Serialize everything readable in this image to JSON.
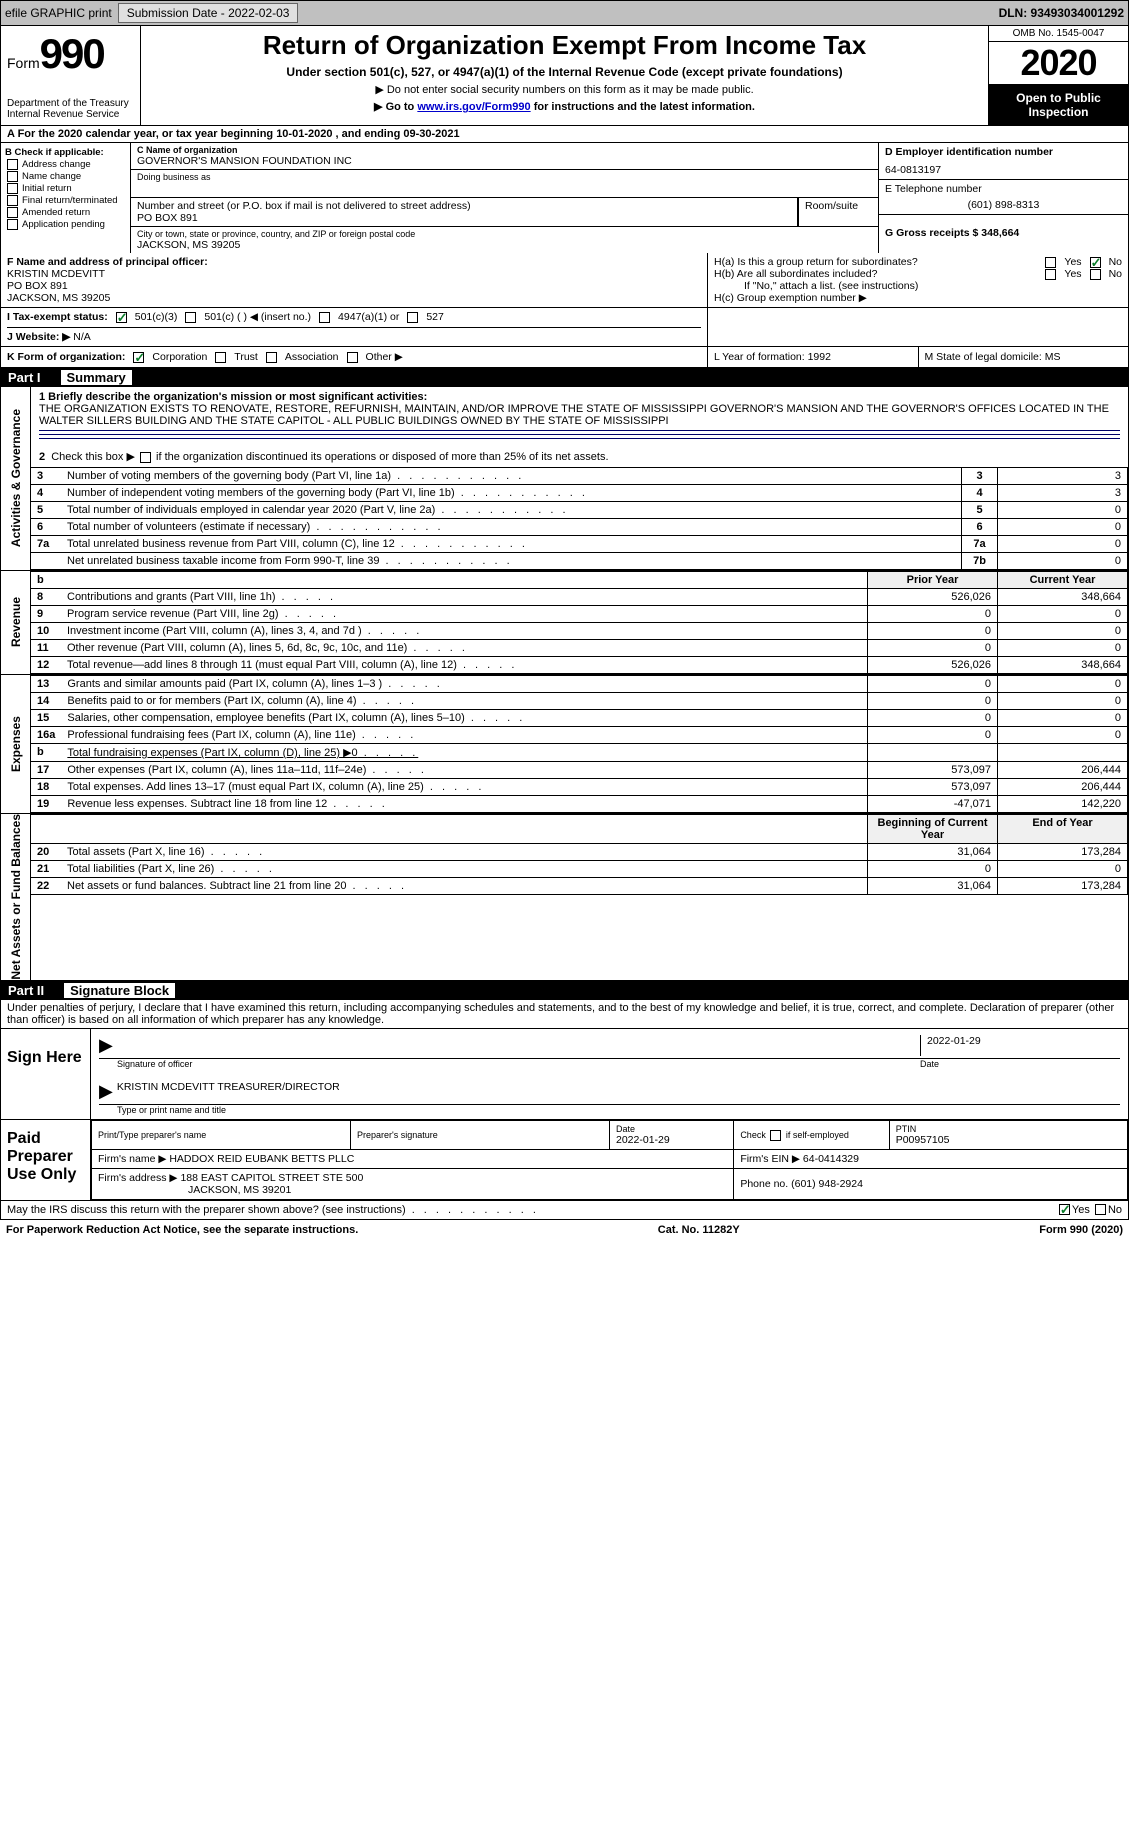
{
  "topbar": {
    "efile": "efile GRAPHIC print",
    "submission_label": "Submission Date - 2022-02-03",
    "dln_label": "DLN: 93493034001292"
  },
  "header": {
    "form_prefix": "Form",
    "form_number": "990",
    "dept": "Department of the Treasury",
    "irs": "Internal Revenue Service",
    "title": "Return of Organization Exempt From Income Tax",
    "subtitle": "Under section 501(c), 527, or 4947(a)(1) of the Internal Revenue Code (except private foundations)",
    "note1": "▶ Do not enter social security numbers on this form as it may be made public.",
    "note2_pre": "▶ Go to ",
    "note2_link": "www.irs.gov/Form990",
    "note2_post": " for instructions and the latest information.",
    "omb": "OMB No. 1545-0047",
    "year": "2020",
    "open": "Open to Public Inspection"
  },
  "period": {
    "label": "A For the 2020 calendar year, or tax year beginning 10-01-2020   , and ending 09-30-2021"
  },
  "section_b": {
    "title": "B Check if applicable:",
    "opts": [
      "Address change",
      "Name change",
      "Initial return",
      "Final return/terminated",
      "Amended return",
      "Application pending"
    ]
  },
  "section_c": {
    "name_label": "C Name of organization",
    "name": "GOVERNOR'S MANSION FOUNDATION INC",
    "dba_label": "Doing business as",
    "addr_label": "Number and street (or P.O. box if mail is not delivered to street address)",
    "room_label": "Room/suite",
    "addr": "PO BOX 891",
    "city_label": "City or town, state or province, country, and ZIP or foreign postal code",
    "city": "JACKSON, MS  39205"
  },
  "section_d": {
    "ein_label": "D Employer identification number",
    "ein": "64-0813197",
    "phone_label": "E Telephone number",
    "phone": "(601) 898-8313",
    "gross_label": "G Gross receipts $ 348,664"
  },
  "section_f": {
    "label": "F  Name and address of principal officer:",
    "name": "KRISTIN MCDEVITT",
    "addr1": "PO BOX 891",
    "addr2": "JACKSON, MS  39205"
  },
  "section_h": {
    "ha": "H(a)  Is this a group return for subordinates?",
    "hb": "H(b)  Are all subordinates included?",
    "hb_note": "If \"No,\" attach a list. (see instructions)",
    "hc": "H(c)  Group exemption number ▶",
    "yes": "Yes",
    "no": "No"
  },
  "tax_status": {
    "label": "I  Tax-exempt status:",
    "o1": "501(c)(3)",
    "o2": "501(c) (  ) ◀ (insert no.)",
    "o3": "4947(a)(1) or",
    "o4": "527"
  },
  "website": {
    "label": "J  Website: ▶",
    "value": "N/A"
  },
  "korg": {
    "label": "K Form of organization:",
    "o1": "Corporation",
    "o2": "Trust",
    "o3": "Association",
    "o4": "Other ▶"
  },
  "lm": {
    "l": "L Year of formation: 1992",
    "m": "M State of legal domicile: MS"
  },
  "part1": {
    "num": "Part I",
    "title": "Summary",
    "sidebar1": "Activities & Governance",
    "sidebar2": "Revenue",
    "sidebar3": "Expenses",
    "sidebar4": "Net Assets or Fund Balances",
    "line1_label": "1  Briefly describe the organization's mission or most significant activities:",
    "line1_text": "THE ORGANIZATION EXISTS TO RENOVATE, RESTORE, REFURNISH, MAINTAIN, AND/OR IMPROVE THE STATE OF MISSISSIPPI GOVERNOR'S MANSION AND THE GOVERNOR'S OFFICES LOCATED IN THE WALTER SILLERS BUILDING AND THE STATE CAPITOL - ALL PUBLIC BUILDINGS OWNED BY THE STATE OF MISSISSIPPI",
    "line2": "2   Check this box ▶      if the organization discontinued its operations or disposed of more than 25% of its net assets.",
    "rows_gov": [
      {
        "n": "3",
        "label": "Number of voting members of the governing body (Part VI, line 1a)",
        "k": "3",
        "v": "3"
      },
      {
        "n": "4",
        "label": "Number of independent voting members of the governing body (Part VI, line 1b)",
        "k": "4",
        "v": "3"
      },
      {
        "n": "5",
        "label": "Total number of individuals employed in calendar year 2020 (Part V, line 2a)",
        "k": "5",
        "v": "0"
      },
      {
        "n": "6",
        "label": "Total number of volunteers (estimate if necessary)",
        "k": "6",
        "v": "0"
      },
      {
        "n": "7a",
        "label": "Total unrelated business revenue from Part VIII, column (C), line 12",
        "k": "7a",
        "v": "0"
      },
      {
        "n": "",
        "label": "Net unrelated business taxable income from Form 990-T, line 39",
        "k": "7b",
        "v": "0"
      }
    ],
    "prior_hdr": "Prior Year",
    "curr_hdr": "Current Year",
    "rows_rev": [
      {
        "n": "8",
        "label": "Contributions and grants (Part VIII, line 1h)",
        "p": "526,026",
        "c": "348,664"
      },
      {
        "n": "9",
        "label": "Program service revenue (Part VIII, line 2g)",
        "p": "0",
        "c": "0"
      },
      {
        "n": "10",
        "label": "Investment income (Part VIII, column (A), lines 3, 4, and 7d )",
        "p": "0",
        "c": "0"
      },
      {
        "n": "11",
        "label": "Other revenue (Part VIII, column (A), lines 5, 6d, 8c, 9c, 10c, and 11e)",
        "p": "0",
        "c": "0"
      },
      {
        "n": "12",
        "label": "Total revenue—add lines 8 through 11 (must equal Part VIII, column (A), line 12)",
        "p": "526,026",
        "c": "348,664"
      }
    ],
    "rows_exp": [
      {
        "n": "13",
        "label": "Grants and similar amounts paid (Part IX, column (A), lines 1–3 )",
        "p": "0",
        "c": "0"
      },
      {
        "n": "14",
        "label": "Benefits paid to or for members (Part IX, column (A), line 4)",
        "p": "0",
        "c": "0"
      },
      {
        "n": "15",
        "label": "Salaries, other compensation, employee benefits (Part IX, column (A), lines 5–10)",
        "p": "0",
        "c": "0"
      },
      {
        "n": "16a",
        "label": "Professional fundraising fees (Part IX, column (A), line 11e)",
        "p": "0",
        "c": "0"
      },
      {
        "n": "b",
        "label": "Total fundraising expenses (Part IX, column (D), line 25) ▶0",
        "p": "",
        "c": ""
      },
      {
        "n": "17",
        "label": "Other expenses (Part IX, column (A), lines 11a–11d, 11f–24e)",
        "p": "573,097",
        "c": "206,444"
      },
      {
        "n": "18",
        "label": "Total expenses. Add lines 13–17 (must equal Part IX, column (A), line 25)",
        "p": "573,097",
        "c": "206,444"
      },
      {
        "n": "19",
        "label": "Revenue less expenses. Subtract line 18 from line 12",
        "p": "-47,071",
        "c": "142,220"
      }
    ],
    "boy_hdr": "Beginning of Current Year",
    "eoy_hdr": "End of Year",
    "rows_net": [
      {
        "n": "20",
        "label": "Total assets (Part X, line 16)",
        "p": "31,064",
        "c": "173,284"
      },
      {
        "n": "21",
        "label": "Total liabilities (Part X, line 26)",
        "p": "0",
        "c": "0"
      },
      {
        "n": "22",
        "label": "Net assets or fund balances. Subtract line 21 from line 20",
        "p": "31,064",
        "c": "173,284"
      }
    ]
  },
  "part2": {
    "num": "Part II",
    "title": "Signature Block",
    "declaration": "Under penalties of perjury, I declare that I have examined this return, including accompanying schedules and statements, and to the best of my knowledge and belief, it is true, correct, and complete. Declaration of preparer (other than officer) is based on all information of which preparer has any knowledge.",
    "sign_here": "Sign Here",
    "sig_officer": "Signature of officer",
    "sig_date": "2022-01-29",
    "sig_name": "KRISTIN MCDEVITT TREASURER/DIRECTOR",
    "sig_type": "Type or print name and title",
    "date_label": "Date",
    "paid": "Paid Preparer Use Only",
    "prep_name_label": "Print/Type preparer's name",
    "prep_sig_label": "Preparer's signature",
    "prep_date": "2022-01-29",
    "self_emp": "Check       if self-employed",
    "ptin_label": "PTIN",
    "ptin": "P00957105",
    "firm_name_label": "Firm's name    ▶",
    "firm_name": "HADDOX REID EUBANK BETTS PLLC",
    "firm_ein_label": "Firm's EIN ▶",
    "firm_ein": "64-0414329",
    "firm_addr_label": "Firm's address ▶",
    "firm_addr1": "188 EAST CAPITOL STREET STE 500",
    "firm_addr2": "JACKSON, MS  39201",
    "phone_label": "Phone no.",
    "phone": "(601) 948-2924",
    "discuss": "May the IRS discuss this return with the preparer shown above? (see instructions)"
  },
  "footer": {
    "left": "For Paperwork Reduction Act Notice, see the separate instructions.",
    "center": "Cat. No. 11282Y",
    "right": "Form 990 (2020)"
  },
  "colors": {
    "link": "#0000cc",
    "check": "#0a7d2a",
    "hr": "#000066"
  }
}
